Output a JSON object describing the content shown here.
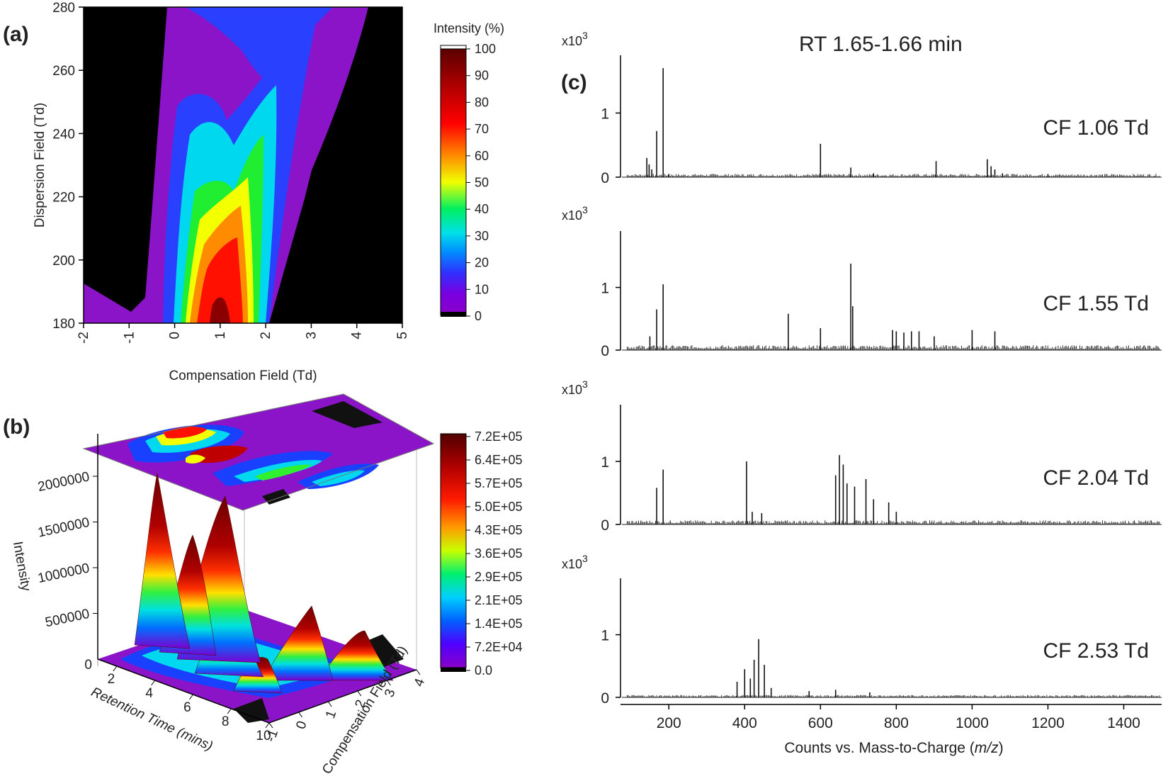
{
  "panel_labels": {
    "a": "(a)",
    "b": "(b)",
    "c": "(c)"
  },
  "chart_data": [
    {
      "id": "a",
      "type": "heatmap",
      "xlabel": "Compensation Field (Td)",
      "ylabel": "Dispersion Field (Td)",
      "xlim": [
        -2,
        5
      ],
      "ylim": [
        180,
        280
      ],
      "xticks": [
        "-2",
        "-1",
        "0",
        "1",
        "2",
        "3",
        "4",
        "5"
      ],
      "yticks": [
        "180",
        "200",
        "220",
        "240",
        "260",
        "280"
      ],
      "colorbar": {
        "title": "Intensity (%)",
        "ticks": [
          "0",
          "10",
          "20",
          "30",
          "40",
          "50",
          "60",
          "70",
          "80",
          "90",
          "100"
        ]
      },
      "peak": {
        "cf": 1.0,
        "df": 180,
        "intensity": 100
      }
    },
    {
      "id": "b",
      "type": "surface3d",
      "xlabel": "Retention Time (mins)",
      "ylabel": "Compensation Field (Td)",
      "zlabel": "Intensity",
      "xticks": [
        "2",
        "4",
        "6",
        "8",
        "10"
      ],
      "yticks": [
        "-1",
        "0",
        "1",
        "2",
        "3",
        "4"
      ],
      "zticks": [
        "500000",
        "1000000",
        "1500000",
        "2000000"
      ],
      "zticks_minor": [
        "0"
      ],
      "colorbar": {
        "ticks": [
          "0.0",
          "7.2E+04",
          "1.4E+05",
          "2.1E+05",
          "2.9E+05",
          "3.6E+05",
          "4.3E+05",
          "5.0E+05",
          "5.7E+05",
          "6.4E+05",
          "7.2E+05"
        ]
      },
      "peaks": [
        {
          "rt": 2.5,
          "cf": 1.0,
          "intensity": 2100000
        },
        {
          "rt": 3.3,
          "cf": 1.3,
          "intensity": 1400000
        },
        {
          "rt": 4.2,
          "cf": 1.9,
          "intensity": 1900000
        },
        {
          "rt": 6.0,
          "cf": 2.5,
          "intensity": 600000
        },
        {
          "rt": 8.5,
          "cf": 3.0,
          "intensity": 550000
        }
      ]
    },
    {
      "id": "c",
      "type": "bar",
      "title": "RT 1.65-1.66 min",
      "xlabel": "Counts vs. Mass-to-Charge (m/z)",
      "xlabel_prefix": "Counts vs. Mass-to-Charge (",
      "xlabel_italic": "m/z",
      "xlabel_suffix": ")",
      "xlim": [
        80,
        1500
      ],
      "xticks": [
        "200",
        "400",
        "600",
        "800",
        "1000",
        "1200",
        "1400"
      ],
      "yticks": [
        "0",
        "1"
      ],
      "yscale_prefix": "x10",
      "yscale_exp": "3",
      "ylim": [
        0,
        1.9
      ],
      "series": [
        {
          "name": "CF 1.06 Td",
          "peaks": [
            [
              142,
              0.3
            ],
            [
              148,
              0.2
            ],
            [
              155,
              0.12
            ],
            [
              168,
              0.72
            ],
            [
              185,
              1.7
            ],
            [
              200,
              0.05
            ],
            [
              600,
              0.52
            ],
            [
              680,
              0.15
            ],
            [
              740,
              0.06
            ],
            [
              905,
              0.25
            ],
            [
              1040,
              0.28
            ],
            [
              1050,
              0.17
            ],
            [
              1060,
              0.12
            ],
            [
              1080,
              0.06
            ],
            [
              1200,
              0.05
            ]
          ],
          "baseline": 0.04
        },
        {
          "name": "CF 1.55 Td",
          "peaks": [
            [
              150,
              0.22
            ],
            [
              168,
              0.65
            ],
            [
              185,
              1.05
            ],
            [
              515,
              0.58
            ],
            [
              600,
              0.35
            ],
            [
              680,
              1.38
            ],
            [
              685,
              0.7
            ],
            [
              790,
              0.32
            ],
            [
              800,
              0.3
            ],
            [
              820,
              0.28
            ],
            [
              840,
              0.3
            ],
            [
              860,
              0.3
            ],
            [
              900,
              0.22
            ],
            [
              1000,
              0.32
            ],
            [
              1060,
              0.3
            ]
          ],
          "baseline": 0.06
        },
        {
          "name": "CF 2.04 Td",
          "peaks": [
            [
              168,
              0.58
            ],
            [
              185,
              0.87
            ],
            [
              405,
              1.0
            ],
            [
              420,
              0.2
            ],
            [
              445,
              0.18
            ],
            [
              640,
              0.78
            ],
            [
              650,
              1.1
            ],
            [
              660,
              0.95
            ],
            [
              670,
              0.65
            ],
            [
              690,
              0.6
            ],
            [
              720,
              0.72
            ],
            [
              740,
              0.4
            ],
            [
              780,
              0.35
            ],
            [
              800,
              0.2
            ]
          ],
          "baseline": 0.05
        },
        {
          "name": "CF 2.53 Td",
          "peaks": [
            [
              380,
              0.25
            ],
            [
              400,
              0.45
            ],
            [
              415,
              0.3
            ],
            [
              425,
              0.6
            ],
            [
              437,
              0.93
            ],
            [
              452,
              0.52
            ],
            [
              470,
              0.15
            ],
            [
              570,
              0.1
            ],
            [
              640,
              0.12
            ],
            [
              730,
              0.08
            ]
          ],
          "baseline": 0.03
        }
      ]
    }
  ]
}
